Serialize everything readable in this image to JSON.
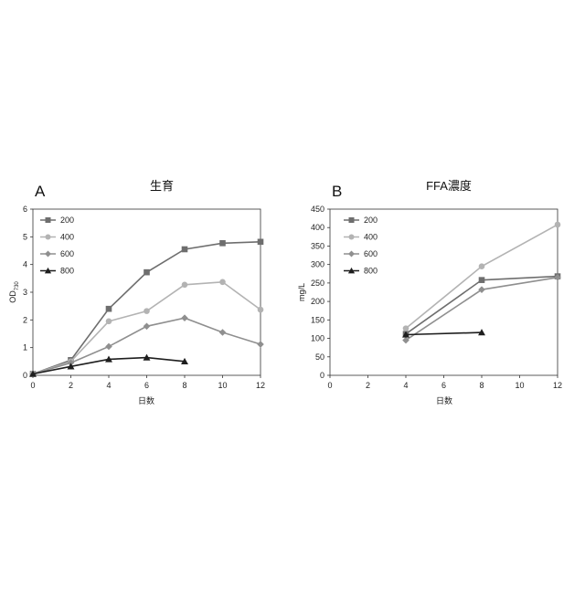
{
  "chart_data": [
    {
      "type": "line",
      "panel_label": "A",
      "title": "生育",
      "xlabel": "日数",
      "ylabel": "OD",
      "ylabel_subscript": "730",
      "xlim": [
        0,
        12
      ],
      "ylim": [
        0,
        6
      ],
      "xticks": [
        0,
        2,
        4,
        6,
        8,
        10,
        12
      ],
      "yticks": [
        0,
        1,
        2,
        3,
        4,
        5,
        6
      ],
      "grid": false,
      "legend_position": "top-left",
      "series": [
        {
          "name": "200",
          "color": "#6e6e6e",
          "marker": "square",
          "x": [
            0,
            2,
            4,
            6,
            8,
            10,
            12
          ],
          "y": [
            0.05,
            0.55,
            2.4,
            3.72,
            4.55,
            4.77,
            4.82
          ]
        },
        {
          "name": "400",
          "color": "#b3b3b3",
          "marker": "circle",
          "x": [
            0,
            2,
            4,
            6,
            8,
            10,
            12
          ],
          "y": [
            0.05,
            0.5,
            1.95,
            2.32,
            3.27,
            3.37,
            2.37
          ]
        },
        {
          "name": "600",
          "color": "#8f8f8f",
          "marker": "diamond",
          "x": [
            0,
            2,
            4,
            6,
            8,
            10,
            12
          ],
          "y": [
            0.05,
            0.45,
            1.04,
            1.77,
            2.07,
            1.55,
            1.12
          ]
        },
        {
          "name": "800",
          "color": "#1e1e1e",
          "marker": "triangle",
          "x": [
            0,
            2,
            4,
            6,
            8
          ],
          "y": [
            0.05,
            0.32,
            0.58,
            0.64,
            0.5
          ]
        }
      ]
    },
    {
      "type": "line",
      "panel_label": "B",
      "title": "FFA濃度",
      "xlabel": "日数",
      "ylabel": "mg/L",
      "xlim": [
        0,
        12
      ],
      "ylim": [
        0,
        450
      ],
      "xticks": [
        0,
        2,
        4,
        6,
        8,
        10,
        12
      ],
      "yticks": [
        0,
        50,
        100,
        150,
        200,
        250,
        300,
        350,
        400,
        450
      ],
      "grid": false,
      "legend_position": "top-left",
      "series": [
        {
          "name": "200",
          "color": "#6e6e6e",
          "marker": "square",
          "x": [
            4,
            8,
            12
          ],
          "y": [
            112,
            258,
            268
          ]
        },
        {
          "name": "400",
          "color": "#b3b3b3",
          "marker": "circle",
          "x": [
            4,
            8,
            12
          ],
          "y": [
            127,
            295,
            408
          ]
        },
        {
          "name": "600",
          "color": "#8f8f8f",
          "marker": "diamond",
          "x": [
            4,
            8,
            12
          ],
          "y": [
            95,
            232,
            265
          ]
        },
        {
          "name": "800",
          "color": "#1e1e1e",
          "marker": "triangle",
          "x": [
            4,
            8
          ],
          "y": [
            110,
            116
          ]
        }
      ]
    }
  ]
}
